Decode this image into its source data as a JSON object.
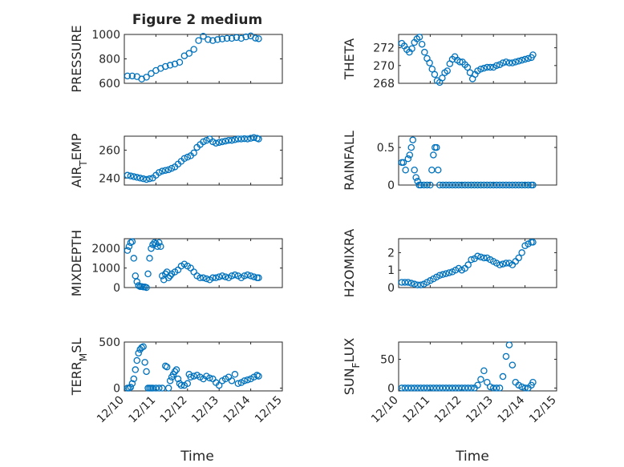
{
  "figure": {
    "title": "Figure 2 medium",
    "xlabel": "Time"
  },
  "chart_data": [
    {
      "name": "pressure",
      "type": "scatter",
      "ylabel": "PRESSURE",
      "ylabel_sub": "",
      "ylabel_suffix": "",
      "ylim": [
        600,
        1000
      ],
      "yticks": [
        600,
        800,
        1000
      ],
      "yminor": [
        650,
        700,
        750,
        850,
        900,
        950
      ],
      "xlim": [
        0,
        5
      ],
      "xticks": [
        0,
        1,
        2,
        3,
        4,
        5
      ],
      "xticklabels": [
        "12/10",
        "12/11",
        "12/12",
        "12/13",
        "12/14",
        "12/15"
      ],
      "show_xticklabels": false,
      "title": "Figure 2 medium",
      "x": [
        0.1,
        0.25,
        0.4,
        0.55,
        0.7,
        0.85,
        1.0,
        1.15,
        1.3,
        1.45,
        1.6,
        1.75,
        1.9,
        2.05,
        2.2,
        2.35,
        2.5,
        2.65,
        2.8,
        2.95,
        3.1,
        3.25,
        3.4,
        3.55,
        3.7,
        3.85,
        4.0,
        4.15,
        4.25
      ],
      "y": [
        660,
        660,
        655,
        635,
        650,
        680,
        705,
        722,
        738,
        748,
        758,
        772,
        825,
        845,
        878,
        950,
        985,
        958,
        950,
        958,
        963,
        968,
        968,
        975,
        968,
        980,
        988,
        970,
        965
      ]
    },
    {
      "name": "theta",
      "type": "scatter",
      "ylabel": "THETA",
      "ylabel_sub": "",
      "ylabel_suffix": "",
      "ylim": [
        268,
        273.5
      ],
      "yticks": [
        268,
        270,
        272
      ],
      "yminor": [
        269,
        271,
        273
      ],
      "xlim": [
        0,
        5
      ],
      "xticks": [
        0,
        1,
        2,
        3,
        4,
        5
      ],
      "xticklabels": [
        "12/10",
        "12/11",
        "12/12",
        "12/13",
        "12/14",
        "12/15"
      ],
      "show_xticklabels": false,
      "title": "",
      "x": [
        0.1,
        0.18,
        0.26,
        0.34,
        0.42,
        0.5,
        0.58,
        0.66,
        0.74,
        0.82,
        0.9,
        0.98,
        1.06,
        1.14,
        1.22,
        1.3,
        1.38,
        1.46,
        1.54,
        1.62,
        1.7,
        1.78,
        1.86,
        1.94,
        2.02,
        2.1,
        2.18,
        2.26,
        2.34,
        2.42,
        2.5,
        2.6,
        2.7,
        2.8,
        2.9,
        3.0,
        3.1,
        3.2,
        3.3,
        3.4,
        3.5,
        3.6,
        3.7,
        3.8,
        3.9,
        4.0,
        4.1,
        4.2,
        4.25
      ],
      "y": [
        272.5,
        272.2,
        271.8,
        271.5,
        271.9,
        272.6,
        273.0,
        273.2,
        272.4,
        271.5,
        270.8,
        270.3,
        269.6,
        269.0,
        268.3,
        268.1,
        268.6,
        269.2,
        269.4,
        270.2,
        270.7,
        271.0,
        270.6,
        270.4,
        270.4,
        270.1,
        269.8,
        269.2,
        268.5,
        269.0,
        269.4,
        269.6,
        269.7,
        269.8,
        269.8,
        269.8,
        270.0,
        270.1,
        270.3,
        270.4,
        270.3,
        270.3,
        270.4,
        270.5,
        270.6,
        270.7,
        270.8,
        270.9,
        271.2
      ]
    },
    {
      "name": "air_temp",
      "type": "scatter",
      "ylabel": "AIR",
      "ylabel_sub": "T",
      "ylabel_suffix": "EMP",
      "ylim": [
        235,
        270
      ],
      "yticks": [
        240,
        260
      ],
      "yminor": [
        250,
        270
      ],
      "xlim": [
        0,
        5
      ],
      "xticks": [
        0,
        1,
        2,
        3,
        4,
        5
      ],
      "xticklabels": [
        "12/10",
        "12/11",
        "12/12",
        "12/13",
        "12/14",
        "12/15"
      ],
      "show_xticklabels": false,
      "title": "",
      "x": [
        0.1,
        0.2,
        0.3,
        0.4,
        0.5,
        0.6,
        0.7,
        0.8,
        0.9,
        1.0,
        1.1,
        1.2,
        1.3,
        1.4,
        1.5,
        1.6,
        1.7,
        1.8,
        1.9,
        2.0,
        2.1,
        2.2,
        2.3,
        2.4,
        2.5,
        2.6,
        2.7,
        2.8,
        2.9,
        3.0,
        3.1,
        3.2,
        3.3,
        3.4,
        3.5,
        3.6,
        3.7,
        3.8,
        3.9,
        4.0,
        4.1,
        4.2,
        4.25
      ],
      "y": [
        242,
        241.5,
        241,
        240.5,
        240,
        239.5,
        239,
        239.5,
        240,
        242,
        244,
        245,
        245.5,
        246,
        247,
        248,
        250,
        252,
        254,
        255,
        256,
        258,
        262,
        264,
        266,
        267,
        268,
        266,
        265,
        265.5,
        266,
        266.5,
        267,
        267,
        267.5,
        268,
        268,
        268.2,
        268,
        268.5,
        269,
        268.5,
        268
      ]
    },
    {
      "name": "rainfall",
      "type": "scatter",
      "ylabel": "RAINFALL",
      "ylabel_sub": "",
      "ylabel_suffix": "",
      "ylim": [
        0,
        0.65
      ],
      "yticks": [
        0,
        0.5
      ],
      "yminor": [
        0.25
      ],
      "xlim": [
        0,
        5
      ],
      "xticks": [
        0,
        1,
        2,
        3,
        4,
        5
      ],
      "xticklabels": [
        "12/10",
        "12/11",
        "12/12",
        "12/13",
        "12/14",
        "12/15"
      ],
      "show_xticklabels": false,
      "title": "",
      "x": [
        0.1,
        0.15,
        0.22,
        0.3,
        0.35,
        0.4,
        0.45,
        0.5,
        0.55,
        0.6,
        0.65,
        0.7,
        0.8,
        0.9,
        1.0,
        1.05,
        1.1,
        1.15,
        1.2,
        1.25,
        1.3,
        1.4,
        1.5,
        1.6,
        1.7,
        1.8,
        1.9,
        2.0,
        2.1,
        2.2,
        2.3,
        2.4,
        2.5,
        2.6,
        2.7,
        2.8,
        2.9,
        3.0,
        3.1,
        3.2,
        3.3,
        3.4,
        3.5,
        3.6,
        3.7,
        3.8,
        3.9,
        4.0,
        4.1,
        4.2,
        4.25
      ],
      "y": [
        0.3,
        0.3,
        0.2,
        0.35,
        0.4,
        0.5,
        0.6,
        0.2,
        0.1,
        0.05,
        0,
        0,
        0,
        0,
        0,
        0.2,
        0.4,
        0.5,
        0.5,
        0.2,
        0,
        0,
        0,
        0,
        0,
        0,
        0,
        0,
        0,
        0,
        0,
        0,
        0,
        0,
        0,
        0,
        0,
        0,
        0,
        0,
        0,
        0,
        0,
        0,
        0,
        0,
        0,
        0,
        0,
        0,
        0
      ]
    },
    {
      "name": "mixdepth",
      "type": "scatter",
      "ylabel": "MIXDEPTH",
      "ylabel_sub": "",
      "ylabel_suffix": "",
      "ylim": [
        0,
        2500
      ],
      "yticks": [
        0,
        1000,
        2000
      ],
      "yminor": [
        500,
        1500
      ],
      "xlim": [
        0,
        5
      ],
      "xticks": [
        0,
        1,
        2,
        3,
        4,
        5
      ],
      "xticklabels": [
        "12/10",
        "12/11",
        "12/12",
        "12/13",
        "12/14",
        "12/15"
      ],
      "show_xticklabels": false,
      "title": "",
      "x": [
        0.1,
        0.15,
        0.2,
        0.25,
        0.3,
        0.35,
        0.4,
        0.45,
        0.5,
        0.55,
        0.6,
        0.65,
        0.7,
        0.75,
        0.8,
        0.85,
        0.9,
        0.95,
        1.0,
        1.05,
        1.1,
        1.15,
        1.2,
        1.25,
        1.3,
        1.35,
        1.4,
        1.45,
        1.5,
        1.6,
        1.7,
        1.8,
        1.9,
        2.0,
        2.1,
        2.2,
        2.3,
        2.4,
        2.5,
        2.6,
        2.7,
        2.8,
        2.9,
        3.0,
        3.1,
        3.2,
        3.3,
        3.4,
        3.5,
        3.6,
        3.7,
        3.8,
        3.9,
        4.0,
        4.1,
        4.2,
        4.25
      ],
      "y": [
        1900,
        2100,
        2300,
        2350,
        1500,
        600,
        300,
        100,
        50,
        50,
        30,
        30,
        0,
        700,
        1500,
        2000,
        2200,
        2300,
        2250,
        2100,
        2300,
        2100,
        600,
        400,
        700,
        800,
        500,
        600,
        700,
        800,
        900,
        1100,
        1200,
        1100,
        1000,
        800,
        600,
        500,
        500,
        450,
        400,
        500,
        500,
        550,
        600,
        550,
        500,
        600,
        650,
        600,
        500,
        600,
        650,
        600,
        550,
        500,
        500
      ]
    },
    {
      "name": "h2omixra",
      "type": "scatter",
      "ylabel": "H2OMIXRA",
      "ylabel_sub": "",
      "ylabel_suffix": "",
      "ylim": [
        0,
        2.8
      ],
      "yticks": [
        0,
        1,
        2
      ],
      "yminor": [
        0.5,
        1.5,
        2.5
      ],
      "xlim": [
        0,
        5
      ],
      "xticks": [
        0,
        1,
        2,
        3,
        4,
        5
      ],
      "xticklabels": [
        "12/10",
        "12/11",
        "12/12",
        "12/13",
        "12/14",
        "12/15"
      ],
      "show_xticklabels": false,
      "title": "",
      "x": [
        0.1,
        0.2,
        0.3,
        0.4,
        0.5,
        0.6,
        0.7,
        0.8,
        0.9,
        1.0,
        1.1,
        1.2,
        1.3,
        1.4,
        1.5,
        1.6,
        1.7,
        1.8,
        1.9,
        2.0,
        2.1,
        2.2,
        2.3,
        2.4,
        2.5,
        2.6,
        2.7,
        2.8,
        2.9,
        3.0,
        3.1,
        3.2,
        3.3,
        3.4,
        3.5,
        3.6,
        3.7,
        3.8,
        3.9,
        4.0,
        4.1,
        4.2,
        4.25
      ],
      "y": [
        0.3,
        0.3,
        0.3,
        0.25,
        0.2,
        0.15,
        0.15,
        0.2,
        0.3,
        0.4,
        0.5,
        0.6,
        0.7,
        0.75,
        0.8,
        0.85,
        0.9,
        1.0,
        1.1,
        1.0,
        1.1,
        1.3,
        1.6,
        1.65,
        1.8,
        1.75,
        1.7,
        1.7,
        1.6,
        1.5,
        1.4,
        1.3,
        1.35,
        1.4,
        1.4,
        1.3,
        1.5,
        1.7,
        2.0,
        2.4,
        2.5,
        2.6,
        2.6
      ]
    },
    {
      "name": "terr_msl",
      "type": "scatter",
      "ylabel": "TERR",
      "ylabel_sub": "M",
      "ylabel_suffix": "SL",
      "ylim": [
        -30,
        500
      ],
      "yticks": [
        0,
        500
      ],
      "yminor": [
        250
      ],
      "xlim": [
        0,
        5
      ],
      "xticks": [
        0,
        1,
        2,
        3,
        4,
        5
      ],
      "xticklabels": [
        "12/10",
        "12/11",
        "12/12",
        "12/13",
        "12/14",
        "12/15"
      ],
      "show_xticklabels": true,
      "title": "",
      "x": [
        0.1,
        0.15,
        0.2,
        0.25,
        0.3,
        0.35,
        0.4,
        0.45,
        0.5,
        0.55,
        0.6,
        0.65,
        0.7,
        0.75,
        0.8,
        0.85,
        0.9,
        1.0,
        1.1,
        1.2,
        1.3,
        1.35,
        1.4,
        1.45,
        1.5,
        1.55,
        1.6,
        1.65,
        1.7,
        1.75,
        1.8,
        1.9,
        2.0,
        2.05,
        2.1,
        2.2,
        2.3,
        2.4,
        2.5,
        2.6,
        2.7,
        2.8,
        2.9,
        3.0,
        3.1,
        3.2,
        3.3,
        3.4,
        3.5,
        3.6,
        3.7,
        3.8,
        3.9,
        4.0,
        4.1,
        4.2,
        4.25
      ],
      "y": [
        0,
        0,
        10,
        50,
        100,
        200,
        300,
        380,
        420,
        440,
        450,
        280,
        180,
        0,
        0,
        0,
        0,
        0,
        0,
        0,
        240,
        230,
        0,
        80,
        120,
        150,
        180,
        200,
        100,
        50,
        30,
        30,
        50,
        150,
        120,
        130,
        140,
        120,
        100,
        130,
        110,
        100,
        60,
        30,
        80,
        100,
        120,
        80,
        150,
        50,
        60,
        80,
        90,
        100,
        120,
        140,
        130
      ]
    },
    {
      "name": "sun_flux",
      "type": "scatter",
      "ylabel": "SUN",
      "ylabel_sub": "F",
      "ylabel_suffix": "LUX",
      "ylim": [
        -5,
        80
      ],
      "yticks": [
        0,
        50
      ],
      "yminor": [
        25
      ],
      "xlim": [
        0,
        5
      ],
      "xticks": [
        0,
        1,
        2,
        3,
        4,
        5
      ],
      "xticklabels": [
        "12/10",
        "12/11",
        "12/12",
        "12/13",
        "12/14",
        "12/15"
      ],
      "show_xticklabels": true,
      "title": "",
      "x": [
        0.1,
        0.2,
        0.3,
        0.4,
        0.5,
        0.6,
        0.7,
        0.8,
        0.9,
        1.0,
        1.1,
        1.2,
        1.3,
        1.4,
        1.5,
        1.6,
        1.7,
        1.8,
        1.9,
        2.0,
        2.1,
        2.2,
        2.3,
        2.4,
        2.5,
        2.6,
        2.7,
        2.8,
        2.9,
        3.0,
        3.1,
        3.2,
        3.3,
        3.4,
        3.5,
        3.6,
        3.7,
        3.8,
        3.9,
        4.0,
        4.1,
        4.2,
        4.25
      ],
      "y": [
        0,
        0,
        0,
        0,
        0,
        0,
        0,
        0,
        0,
        0,
        0,
        0,
        0,
        0,
        0,
        0,
        0,
        0,
        0,
        0,
        0,
        0,
        0,
        0,
        5,
        15,
        30,
        10,
        2,
        0,
        0,
        0,
        20,
        55,
        75,
        40,
        10,
        5,
        2,
        0,
        0,
        5,
        10
      ]
    }
  ]
}
